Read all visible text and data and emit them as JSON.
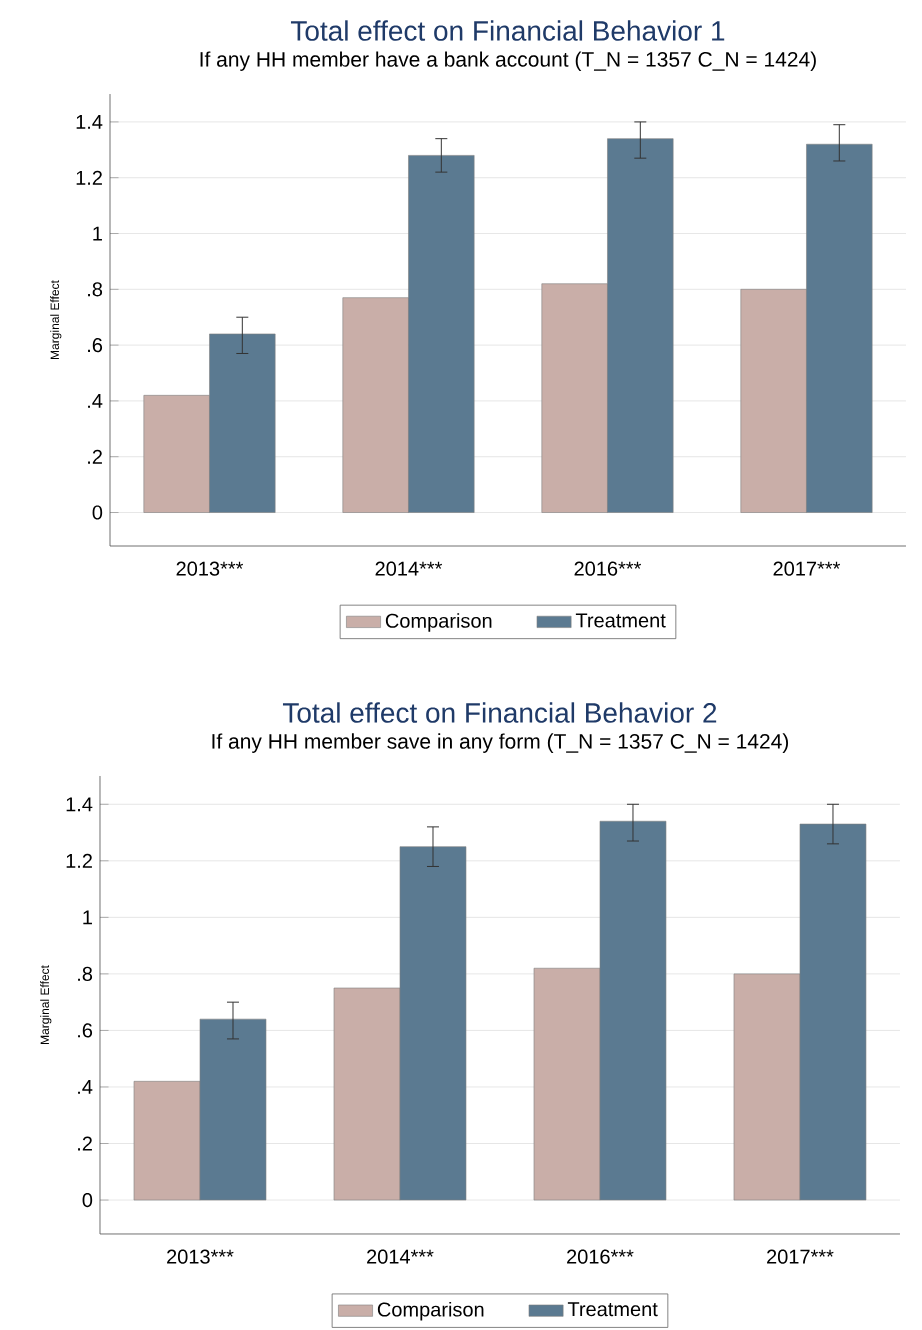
{
  "chart_data": [
    {
      "type": "bar",
      "title": "Total effect on Financial Behavior 1",
      "subtitle": "If any HH member have a bank account (T_N = 1357 C_N = 1424)",
      "ylabel": "Marginal Effect",
      "categories": [
        "2013***",
        "2014***",
        "2016***",
        "2017***"
      ],
      "series": [
        {
          "name": "Comparison",
          "color": "#c9aea8",
          "values": [
            0.42,
            0.77,
            0.82,
            0.8
          ]
        },
        {
          "name": "Treatment",
          "color": "#5b7a91",
          "values": [
            0.64,
            1.28,
            1.34,
            1.32
          ],
          "errors": [
            [
              0.57,
              0.7
            ],
            [
              1.22,
              1.34
            ],
            [
              1.27,
              1.4
            ],
            [
              1.26,
              1.39
            ]
          ]
        }
      ],
      "ylim": [
        -0.12,
        1.5
      ],
      "yticks": [
        0,
        {
          "value": 0.2,
          "label": ".2"
        },
        {
          "value": 0.4,
          "label": ".4"
        },
        {
          "value": 0.6,
          "label": ".6"
        },
        {
          "value": 0.8,
          "label": ".8"
        },
        1,
        {
          "value": 1.2,
          "label": "1.2"
        },
        {
          "value": 1.4,
          "label": "1.4"
        }
      ],
      "grid": "y",
      "legend": "bottom"
    },
    {
      "type": "bar",
      "title": "Total effect on Financial Behavior 2",
      "subtitle": "If any HH member save in any form (T_N = 1357 C_N = 1424)",
      "ylabel": "Marginal Effect",
      "categories": [
        "2013***",
        "2014***",
        "2016***",
        "2017***"
      ],
      "series": [
        {
          "name": "Comparison",
          "color": "#c9aea8",
          "values": [
            0.42,
            0.75,
            0.82,
            0.8
          ]
        },
        {
          "name": "Treatment",
          "color": "#5b7a91",
          "values": [
            0.64,
            1.25,
            1.34,
            1.33
          ],
          "errors": [
            [
              0.57,
              0.7
            ],
            [
              1.18,
              1.32
            ],
            [
              1.27,
              1.4
            ],
            [
              1.26,
              1.4
            ]
          ]
        }
      ],
      "ylim": [
        -0.12,
        1.5
      ],
      "yticks": [
        0,
        {
          "value": 0.2,
          "label": ".2"
        },
        {
          "value": 0.4,
          "label": ".4"
        },
        {
          "value": 0.6,
          "label": ".6"
        },
        {
          "value": 0.8,
          "label": ".8"
        },
        1,
        {
          "value": 1.2,
          "label": "1.2"
        },
        {
          "value": 1.4,
          "label": "1.4"
        }
      ],
      "grid": "y",
      "legend": "bottom"
    }
  ]
}
